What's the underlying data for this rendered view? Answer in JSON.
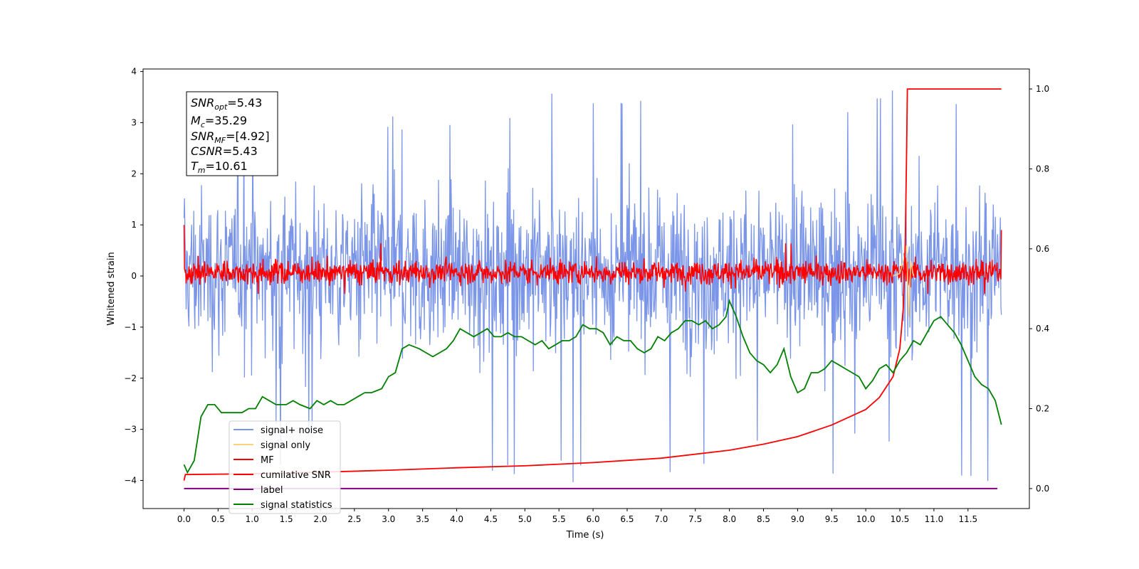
{
  "chart_data": {
    "type": "line",
    "xlabel": "Time (s)",
    "ylabel": "Whitened strain",
    "xlim": [
      -0.6,
      12.4
    ],
    "ylim_left": [
      -4.55,
      4.05
    ],
    "ylim_right": [
      -0.05,
      1.05
    ],
    "x_ticks": [
      "0.0",
      "0.5",
      "1.0",
      "1.5",
      "2.0",
      "2.5",
      "3.0",
      "3.5",
      "4.0",
      "4.5",
      "5.0",
      "5.5",
      "6.0",
      "6.5",
      "7.0",
      "7.5",
      "8.0",
      "8.5",
      "9.0",
      "9.5",
      "10.0",
      "10.5",
      "11.0",
      "11.5"
    ],
    "y_ticks_left": [
      "4",
      "3",
      "2",
      "1",
      "0",
      "−1",
      "−2",
      "−3",
      "−4"
    ],
    "y_ticks_right": [
      "1.0",
      "0.8",
      "0.6",
      "0.4",
      "0.2",
      "0.0"
    ],
    "annotation": {
      "snr_opt": {
        "name": "SNR",
        "sub": "opt",
        "value": "=5.43"
      },
      "mc": {
        "name": "M",
        "sub": "c",
        "value": "=35.29"
      },
      "snr_mf": {
        "name": "SNR",
        "sub": "MF",
        "value": "=[4.92]"
      },
      "csnr": {
        "name": "CSNR",
        "value": "=5.43"
      },
      "tm": {
        "name": "T",
        "sub": "m",
        "value": "=10.61"
      }
    },
    "legend": {
      "placement": "lower-left",
      "entries": [
        {
          "label": "signal+ noise",
          "color": "#7b96e8"
        },
        {
          "label": "signal only",
          "color": "#ffd27f"
        },
        {
          "label": "MF",
          "color": "#ff0000"
        },
        {
          "label": "cumilative SNR",
          "color": "#ff0000"
        },
        {
          "label": "label",
          "color": "#800080"
        },
        {
          "label": "signal statistics",
          "color": "#008000"
        }
      ]
    },
    "series": {
      "signal_noise": {
        "name": "signal+ noise",
        "axis": "left",
        "color": "#7b96e8",
        "x_range": [
          0.0,
          11.99
        ],
        "band": [
          -1.9,
          2.1
        ],
        "min": -4.15,
        "max": 3.65
      },
      "signal_only": {
        "name": "signal only",
        "axis": "left",
        "color": "#ffd27f",
        "x": [
          10.4,
          10.5,
          10.55,
          10.6,
          10.63,
          10.66,
          10.7
        ],
        "y": [
          0.0,
          0.05,
          0.3,
          0.6,
          -0.8,
          0.3,
          0.0
        ]
      },
      "mf": {
        "name": "MF",
        "axis": "left",
        "color": "#ff0000",
        "x_range": [
          0.0,
          11.99
        ],
        "band": [
          -0.3,
          0.45
        ],
        "start": 1.0,
        "end": 0.9
      },
      "cumulative_snr": {
        "name": "cumilative SNR",
        "axis": "right",
        "color": "#ff0000",
        "x": [
          0.0,
          0.02,
          1.0,
          2.0,
          3.0,
          4.0,
          5.0,
          6.0,
          7.0,
          8.0,
          8.5,
          9.0,
          9.5,
          10.0,
          10.2,
          10.4,
          10.5,
          10.55,
          10.58,
          10.6,
          10.61,
          11.99
        ],
        "y": [
          0.02,
          0.035,
          0.037,
          0.041,
          0.046,
          0.052,
          0.057,
          0.065,
          0.076,
          0.096,
          0.111,
          0.13,
          0.159,
          0.198,
          0.228,
          0.28,
          0.35,
          0.45,
          0.62,
          0.85,
          1.0,
          1.0
        ]
      },
      "label": {
        "name": "label",
        "axis": "right",
        "color": "#800080",
        "x": [
          0.0,
          11.93
        ],
        "y": [
          0.0,
          0.0
        ]
      },
      "signal_statistics": {
        "name": "signal statistics",
        "axis": "right",
        "color": "#008000",
        "x": [
          0.0,
          0.05,
          0.15,
          0.25,
          0.35,
          0.45,
          0.55,
          0.65,
          0.75,
          0.85,
          0.95,
          1.05,
          1.15,
          1.25,
          1.35,
          1.5,
          1.6,
          1.7,
          1.85,
          1.95,
          2.05,
          2.15,
          2.25,
          2.35,
          2.45,
          2.55,
          2.65,
          2.75,
          2.9,
          3.0,
          3.1,
          3.2,
          3.3,
          3.45,
          3.55,
          3.65,
          3.75,
          3.85,
          3.95,
          4.05,
          4.15,
          4.25,
          4.35,
          4.45,
          4.55,
          4.65,
          4.75,
          4.85,
          4.95,
          5.05,
          5.15,
          5.25,
          5.35,
          5.45,
          5.55,
          5.65,
          5.75,
          5.85,
          5.95,
          6.05,
          6.15,
          6.25,
          6.35,
          6.45,
          6.55,
          6.65,
          6.75,
          6.85,
          6.95,
          7.05,
          7.15,
          7.25,
          7.35,
          7.45,
          7.55,
          7.65,
          7.75,
          7.85,
          7.95,
          8.0,
          8.1,
          8.2,
          8.3,
          8.4,
          8.5,
          8.6,
          8.7,
          8.8,
          8.9,
          9.0,
          9.1,
          9.2,
          9.3,
          9.4,
          9.5,
          9.6,
          9.7,
          9.8,
          9.9,
          10.0,
          10.1,
          10.2,
          10.3,
          10.4,
          10.5,
          10.6,
          10.7,
          10.8,
          10.9,
          11.0,
          11.1,
          11.2,
          11.3,
          11.4,
          11.5,
          11.6,
          11.7,
          11.8,
          11.9,
          11.99
        ],
        "y": [
          0.06,
          0.04,
          0.07,
          0.18,
          0.21,
          0.21,
          0.19,
          0.19,
          0.19,
          0.19,
          0.2,
          0.2,
          0.23,
          0.22,
          0.21,
          0.21,
          0.22,
          0.21,
          0.2,
          0.22,
          0.21,
          0.22,
          0.21,
          0.21,
          0.22,
          0.23,
          0.24,
          0.24,
          0.25,
          0.28,
          0.29,
          0.35,
          0.36,
          0.35,
          0.34,
          0.33,
          0.34,
          0.35,
          0.37,
          0.4,
          0.39,
          0.38,
          0.39,
          0.4,
          0.38,
          0.38,
          0.39,
          0.38,
          0.38,
          0.37,
          0.36,
          0.37,
          0.35,
          0.36,
          0.37,
          0.37,
          0.38,
          0.41,
          0.4,
          0.4,
          0.39,
          0.36,
          0.38,
          0.37,
          0.37,
          0.35,
          0.34,
          0.35,
          0.38,
          0.37,
          0.39,
          0.4,
          0.42,
          0.42,
          0.41,
          0.42,
          0.4,
          0.41,
          0.43,
          0.47,
          0.43,
          0.38,
          0.34,
          0.32,
          0.31,
          0.29,
          0.31,
          0.35,
          0.28,
          0.24,
          0.25,
          0.29,
          0.29,
          0.3,
          0.32,
          0.31,
          0.3,
          0.29,
          0.28,
          0.25,
          0.27,
          0.3,
          0.31,
          0.29,
          0.32,
          0.34,
          0.37,
          0.36,
          0.39,
          0.42,
          0.43,
          0.41,
          0.39,
          0.36,
          0.32,
          0.28,
          0.26,
          0.25,
          0.22,
          0.16
        ]
      }
    }
  }
}
